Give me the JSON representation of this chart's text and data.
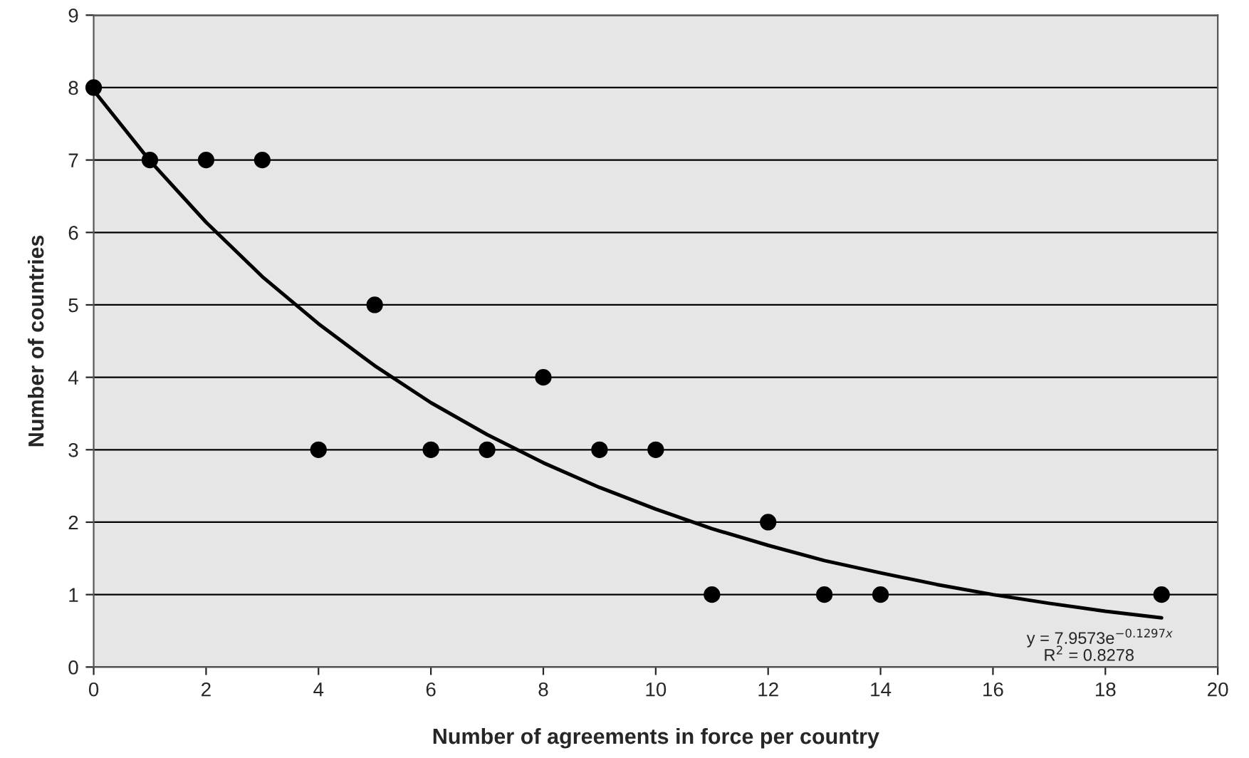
{
  "chart_data": {
    "type": "scatter",
    "xlabel": "Number of agreements in force per country",
    "ylabel": "Number of countries",
    "series": [
      {
        "color": "#000000",
        "marker": "circle",
        "x": [
          0,
          1,
          2,
          3,
          4,
          5,
          6,
          7,
          8,
          9,
          10,
          11,
          12,
          13,
          14,
          19
        ],
        "values": [
          8,
          7,
          7,
          7,
          3,
          5,
          3,
          3,
          4,
          3,
          3,
          1,
          2,
          1,
          1,
          1
        ]
      },
      {
        "type": "line",
        "color": "#000000",
        "marker": "none",
        "line_style": "solid",
        "x": [
          0,
          1,
          2,
          3,
          4,
          5,
          6,
          7,
          8,
          9,
          10,
          11,
          12,
          13,
          14,
          15,
          16,
          17,
          18,
          19
        ],
        "values": [
          7.96,
          6.99,
          6.14,
          5.39,
          4.74,
          4.16,
          3.65,
          3.21,
          2.82,
          2.48,
          2.18,
          1.91,
          1.68,
          1.47,
          1.3,
          1.14,
          1.0,
          0.88,
          0.77,
          0.68
        ]
      }
    ],
    "annotations": [
      "y = 7.9573e$^{−0.1297x}$",
      "R$^{2}$ = 0.8278"
    ],
    "xlim": [
      0,
      20
    ],
    "xticks": [
      0,
      2,
      4,
      6,
      8,
      10,
      12,
      14,
      16,
      18,
      20
    ],
    "ylim": [
      0,
      9
    ],
    "yticks": [
      0,
      1,
      2,
      3,
      4,
      5,
      6,
      7,
      8,
      9
    ],
    "grid": "y",
    "legend": false
  }
}
